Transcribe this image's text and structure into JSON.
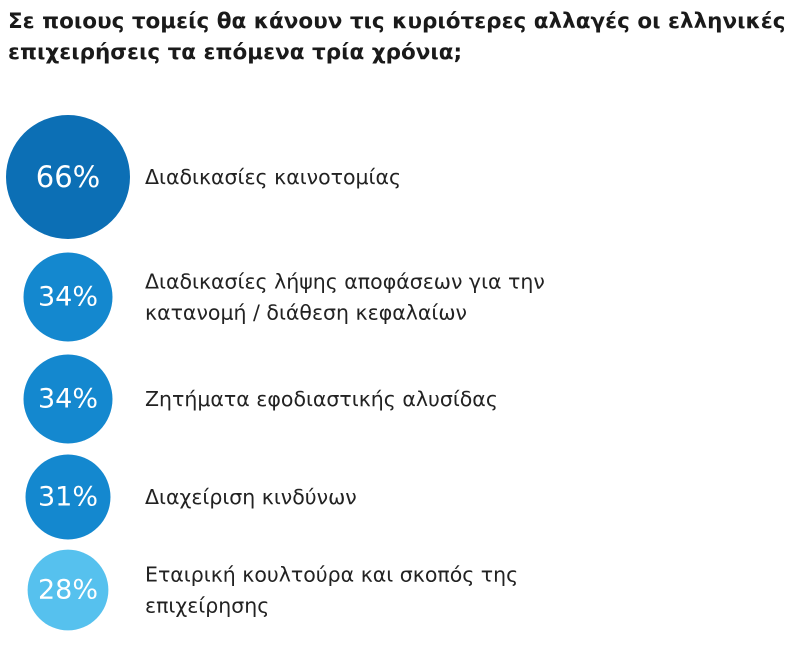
{
  "chart_data": {
    "type": "bubble",
    "title": "Σε ποιους τομείς θα κάνουν τις κυριότερες αλλαγές οι ελληνικές επιχειρήσεις τα επόμενα τρία χρόνια;",
    "unit": "%",
    "items": [
      {
        "value": 66,
        "display": "66%",
        "label": [
          "Διαδικασίες καινοτομίας"
        ],
        "color": "#0c6fb5"
      },
      {
        "value": 34,
        "display": "34%",
        "label": [
          "Διαδικασίες λήψης αποφάσεων για την",
          "κατανομή / διάθεση κεφαλαίων"
        ],
        "color": "#1488cf"
      },
      {
        "value": 34,
        "display": "34%",
        "label": [
          "Ζητήματα εφοδιαστικής αλυσίδας"
        ],
        "color": "#1488cf"
      },
      {
        "value": 31,
        "display": "31%",
        "label": [
          "Διαχείριση κινδύνων"
        ],
        "color": "#1488cf"
      },
      {
        "value": 28,
        "display": "28%",
        "label": [
          "Εταιρική κουλτούρα και σκοπός της",
          "επιχείρησης"
        ],
        "color": "#56c1ee"
      }
    ]
  }
}
